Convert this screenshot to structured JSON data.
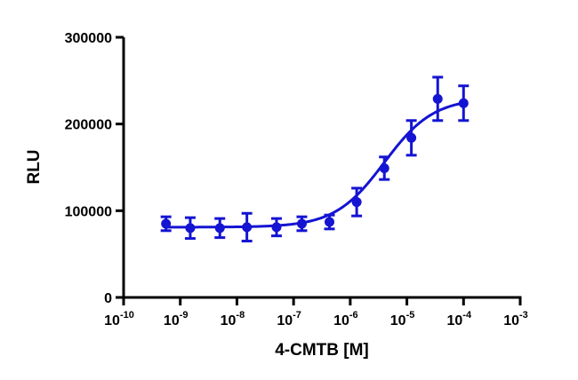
{
  "chart_data": {
    "type": "scatter",
    "title": "",
    "xlabel": "4-CMTB [M]",
    "ylabel": "RLU",
    "x_scale": "log",
    "xlim": [
      1e-10,
      0.001
    ],
    "ylim": [
      0,
      300000
    ],
    "x_ticks": [
      {
        "base": "10",
        "exp": "-10"
      },
      {
        "base": "10",
        "exp": "-9"
      },
      {
        "base": "10",
        "exp": "-8"
      },
      {
        "base": "10",
        "exp": "-7"
      },
      {
        "base": "10",
        "exp": "-6"
      },
      {
        "base": "10",
        "exp": "-5"
      },
      {
        "base": "10",
        "exp": "-4"
      },
      {
        "base": "10",
        "exp": "-3"
      }
    ],
    "y_ticks": [
      "0",
      "100000",
      "200000",
      "300000"
    ],
    "y_tick_values": [
      0,
      100000,
      200000,
      300000
    ],
    "grid": false,
    "legend": "none",
    "color": "#1414d2",
    "series": [
      {
        "points": [
          {
            "x": 5.6e-10,
            "y": 85000,
            "err": 8000
          },
          {
            "x": 1.5e-09,
            "y": 80000,
            "err": 12000
          },
          {
            "x": 5e-09,
            "y": 80000,
            "err": 11000
          },
          {
            "x": 1.5e-08,
            "y": 81000,
            "err": 16000
          },
          {
            "x": 5e-08,
            "y": 81000,
            "err": 10000
          },
          {
            "x": 1.4e-07,
            "y": 85000,
            "err": 8000
          },
          {
            "x": 4.3e-07,
            "y": 87000,
            "err": 8000
          },
          {
            "x": 1.3e-06,
            "y": 110000,
            "err": 16000
          },
          {
            "x": 4e-06,
            "y": 149000,
            "err": 13000
          },
          {
            "x": 1.2e-05,
            "y": 184000,
            "err": 20000
          },
          {
            "x": 3.5e-05,
            "y": 229000,
            "err": 25000
          },
          {
            "x": 0.0001,
            "y": 224000,
            "err": 20000
          }
        ],
        "fit": {
          "bottom": 81000,
          "top": 230000,
          "log_ec50": -5.4,
          "hill": 1.0,
          "x_from": 5.6e-10,
          "x_to": 0.0001
        }
      }
    ]
  }
}
